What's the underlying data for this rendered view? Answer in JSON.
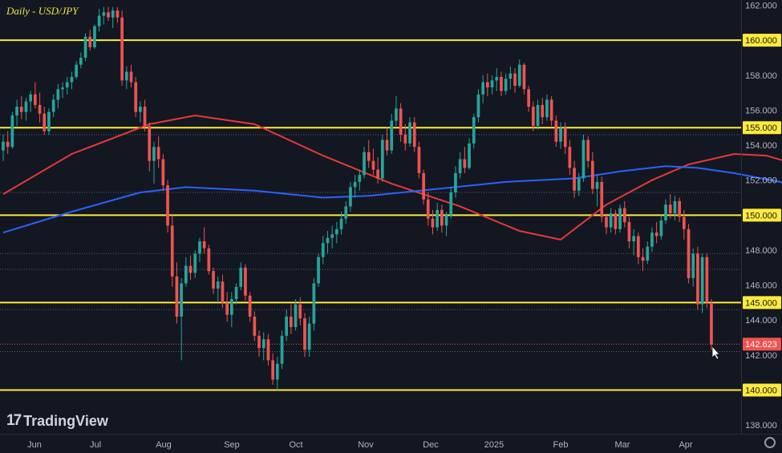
{
  "header": {
    "title": "Daily - USD/JPY"
  },
  "branding": {
    "logo_mark": "17",
    "logo_text": "TradingView"
  },
  "colors": {
    "background": "#131722",
    "up": "#26a69a",
    "down": "#ef5350",
    "level": "#ffeb3b",
    "ma_fast": "#e53935",
    "ma_slow": "#2962ff"
  },
  "chart_data": {
    "type": "candlestick",
    "symbol": "USD/JPY",
    "interval": "Daily",
    "ylim": [
      137.5,
      162.3
    ],
    "yticks": [
      138,
      140,
      142,
      144,
      146,
      148,
      150,
      152,
      154,
      156,
      158,
      160,
      162
    ],
    "ytick_labels": [
      "138.000",
      "140.000",
      "142.000",
      "144.000",
      "146.000",
      "148.000",
      "150.000",
      "152.000",
      "154.000",
      "156.000",
      "158.000",
      "160.000",
      "162.000"
    ],
    "x_labels": [
      "Jun",
      "Jul",
      "Aug",
      "Sep",
      "Oct",
      "Nov",
      "Dec",
      "2025",
      "Feb",
      "Mar",
      "Apr"
    ],
    "levels": [
      {
        "value": 160,
        "label": "160.000"
      },
      {
        "value": 155,
        "label": "155.000"
      },
      {
        "value": 150,
        "label": "150.000"
      },
      {
        "value": 145,
        "label": "145.000"
      },
      {
        "value": 140,
        "label": "140.000"
      }
    ],
    "dotted_levels": [
      154.6,
      151.3,
      147.8,
      146.9,
      144.6,
      142.2
    ],
    "last_price": {
      "value": 142.623,
      "label": "142.623"
    },
    "moving_averages": [
      {
        "points": [
          [
            0,
            151.2
          ],
          [
            15,
            153.5
          ],
          [
            32,
            155.2
          ],
          [
            42,
            155.7
          ],
          [
            55,
            155.2
          ],
          [
            70,
            153.4
          ],
          [
            85,
            151.8
          ],
          [
            100,
            150.5
          ],
          [
            113,
            149.1
          ],
          [
            122,
            148.6
          ],
          [
            132,
            150.6
          ],
          [
            142,
            152.0
          ],
          [
            150,
            152.9
          ],
          [
            160,
            153.5
          ],
          [
            167,
            153.4
          ],
          [
            175,
            152.8
          ],
          [
            182,
            152.2
          ]
        ]
      },
      {
        "points": [
          [
            0,
            149.0
          ],
          [
            15,
            150.2
          ],
          [
            30,
            151.3
          ],
          [
            40,
            151.6
          ],
          [
            55,
            151.4
          ],
          [
            70,
            151.0
          ],
          [
            80,
            151.1
          ],
          [
            95,
            151.5
          ],
          [
            110,
            151.9
          ],
          [
            125,
            152.1
          ],
          [
            135,
            152.5
          ],
          [
            145,
            152.8
          ],
          [
            152,
            152.7
          ],
          [
            160,
            152.4
          ],
          [
            170,
            151.9
          ],
          [
            182,
            151.0
          ]
        ]
      }
    ],
    "candles": [
      [
        153.7,
        154.6,
        153.1,
        154.2
      ],
      [
        154.2,
        154.8,
        153.5,
        153.9
      ],
      [
        153.9,
        155.9,
        153.8,
        155.7
      ],
      [
        155.7,
        156.6,
        155.1,
        156.2
      ],
      [
        156.2,
        156.8,
        155.5,
        155.9
      ],
      [
        155.9,
        156.7,
        155.4,
        156.5
      ],
      [
        156.5,
        157.1,
        155.9,
        156.9
      ],
      [
        156.9,
        157.6,
        156.1,
        156.3
      ],
      [
        156.3,
        157.0,
        155.3,
        155.8
      ],
      [
        155.8,
        156.2,
        154.6,
        154.8
      ],
      [
        154.8,
        156.1,
        154.6,
        155.9
      ],
      [
        155.9,
        156.9,
        155.6,
        156.6
      ],
      [
        156.6,
        157.5,
        156.1,
        157.2
      ],
      [
        157.2,
        157.6,
        156.7,
        157.3
      ],
      [
        157.3,
        157.9,
        156.9,
        157.6
      ],
      [
        157.6,
        158.2,
        157.2,
        157.9
      ],
      [
        157.9,
        158.8,
        157.8,
        158.6
      ],
      [
        158.6,
        159.3,
        158.4,
        159.0
      ],
      [
        159.0,
        160.4,
        158.8,
        160.2
      ],
      [
        160.2,
        160.6,
        159.4,
        159.6
      ],
      [
        159.6,
        160.9,
        159.5,
        160.8
      ],
      [
        160.8,
        161.8,
        160.5,
        161.4
      ],
      [
        161.4,
        161.9,
        160.9,
        161.6
      ],
      [
        161.6,
        161.9,
        161.1,
        161.3
      ],
      [
        161.3,
        161.9,
        160.7,
        161.7
      ],
      [
        161.7,
        161.9,
        161.0,
        161.3
      ],
      [
        161.3,
        161.7,
        157.4,
        157.7
      ],
      [
        157.7,
        158.5,
        157.2,
        158.2
      ],
      [
        158.2,
        158.6,
        157.3,
        157.6
      ],
      [
        157.6,
        157.9,
        155.6,
        155.9
      ],
      [
        155.9,
        156.5,
        155.3,
        156.2
      ],
      [
        156.2,
        156.6,
        154.8,
        155.1
      ],
      [
        155.1,
        155.3,
        152.5,
        153.1
      ],
      [
        153.1,
        154.2,
        151.8,
        153.9
      ],
      [
        153.9,
        154.5,
        152.7,
        153.2
      ],
      [
        153.2,
        153.5,
        151.4,
        151.7
      ],
      [
        151.7,
        152.0,
        149.0,
        149.4
      ],
      [
        149.4,
        150.0,
        145.9,
        146.5
      ],
      [
        146.5,
        147.3,
        143.8,
        144.2
      ],
      [
        144.2,
        146.4,
        141.7,
        146.1
      ],
      [
        146.1,
        147.6,
        145.9,
        147.1
      ],
      [
        147.1,
        147.7,
        146.3,
        146.7
      ],
      [
        146.7,
        148.0,
        146.4,
        147.8
      ],
      [
        147.8,
        148.7,
        147.3,
        148.5
      ],
      [
        148.5,
        149.3,
        147.8,
        148.1
      ],
      [
        148.1,
        148.3,
        146.6,
        146.8
      ],
      [
        146.8,
        147.0,
        145.5,
        145.8
      ],
      [
        145.8,
        146.5,
        145.0,
        146.2
      ],
      [
        146.2,
        146.6,
        144.7,
        145.0
      ],
      [
        145.0,
        145.6,
        143.9,
        144.3
      ],
      [
        144.3,
        145.6,
        143.6,
        145.2
      ],
      [
        145.2,
        146.1,
        144.9,
        145.9
      ],
      [
        145.9,
        147.3,
        145.7,
        147.0
      ],
      [
        147.0,
        147.2,
        145.1,
        145.4
      ],
      [
        145.4,
        145.6,
        143.9,
        144.2
      ],
      [
        144.2,
        144.5,
        142.8,
        143.1
      ],
      [
        143.1,
        143.4,
        141.9,
        142.4
      ],
      [
        142.4,
        143.3,
        141.7,
        142.9
      ],
      [
        142.9,
        143.2,
        141.4,
        141.7
      ],
      [
        141.7,
        142.1,
        140.3,
        140.6
      ],
      [
        140.6,
        141.9,
        140.0,
        141.5
      ],
      [
        141.5,
        143.4,
        141.2,
        143.1
      ],
      [
        143.1,
        144.6,
        142.8,
        144.2
      ],
      [
        144.2,
        144.9,
        143.2,
        143.6
      ],
      [
        143.6,
        145.2,
        143.4,
        144.9
      ],
      [
        144.9,
        145.3,
        143.7,
        144.1
      ],
      [
        144.1,
        144.4,
        141.9,
        142.3
      ],
      [
        142.3,
        144.2,
        141.9,
        143.8
      ],
      [
        143.8,
        146.4,
        143.4,
        146.1
      ],
      [
        146.1,
        147.8,
        145.9,
        147.6
      ],
      [
        147.6,
        148.8,
        147.2,
        148.4
      ],
      [
        148.4,
        149.1,
        147.8,
        148.7
      ],
      [
        148.7,
        149.4,
        148.1,
        148.9
      ],
      [
        148.9,
        149.6,
        148.4,
        149.2
      ],
      [
        149.2,
        150.2,
        148.9,
        149.8
      ],
      [
        149.8,
        150.8,
        149.5,
        150.5
      ],
      [
        150.5,
        151.9,
        150.2,
        151.6
      ],
      [
        151.6,
        152.3,
        151.0,
        151.9
      ],
      [
        151.9,
        152.6,
        151.4,
        152.3
      ],
      [
        152.3,
        153.9,
        152.1,
        153.6
      ],
      [
        153.6,
        154.3,
        152.7,
        153.1
      ],
      [
        153.1,
        153.8,
        152.3,
        152.6
      ],
      [
        152.6,
        153.3,
        151.8,
        152.1
      ],
      [
        152.1,
        154.6,
        151.9,
        154.3
      ],
      [
        154.3,
        155.0,
        153.4,
        153.7
      ],
      [
        153.7,
        155.8,
        153.5,
        155.4
      ],
      [
        155.4,
        156.8,
        155.1,
        156.1
      ],
      [
        156.1,
        156.4,
        154.2,
        154.6
      ],
      [
        154.6,
        155.2,
        153.7,
        154.1
      ],
      [
        154.1,
        155.6,
        153.9,
        155.3
      ],
      [
        155.3,
        155.6,
        153.6,
        153.9
      ],
      [
        153.9,
        154.2,
        152.1,
        152.4
      ],
      [
        152.4,
        152.6,
        150.6,
        150.9
      ],
      [
        150.9,
        151.3,
        149.4,
        149.8
      ],
      [
        149.8,
        150.3,
        148.9,
        149.3
      ],
      [
        149.3,
        150.7,
        149.1,
        150.3
      ],
      [
        150.3,
        150.6,
        149.0,
        149.4
      ],
      [
        149.4,
        150.2,
        148.8,
        150.0
      ],
      [
        150.0,
        151.6,
        149.8,
        151.3
      ],
      [
        151.3,
        152.8,
        151.0,
        152.4
      ],
      [
        152.4,
        153.6,
        152.1,
        153.2
      ],
      [
        153.2,
        153.9,
        152.4,
        152.7
      ],
      [
        152.7,
        154.4,
        152.6,
        154.1
      ],
      [
        154.1,
        155.8,
        153.8,
        155.6
      ],
      [
        155.6,
        157.2,
        155.3,
        156.9
      ],
      [
        156.9,
        158.0,
        156.4,
        157.6
      ],
      [
        157.6,
        158.1,
        156.8,
        157.3
      ],
      [
        157.3,
        158.0,
        156.9,
        157.7
      ],
      [
        157.7,
        158.4,
        157.1,
        157.9
      ],
      [
        157.9,
        158.2,
        156.8,
        157.1
      ],
      [
        157.1,
        158.1,
        156.9,
        157.8
      ],
      [
        157.8,
        158.5,
        157.2,
        158.1
      ],
      [
        158.1,
        158.4,
        157.0,
        157.4
      ],
      [
        157.4,
        158.9,
        157.3,
        158.6
      ],
      [
        158.6,
        158.7,
        156.9,
        157.2
      ],
      [
        157.2,
        157.4,
        155.9,
        156.2
      ],
      [
        156.2,
        156.5,
        154.8,
        155.1
      ],
      [
        155.1,
        156.6,
        154.9,
        156.3
      ],
      [
        156.3,
        156.7,
        155.2,
        155.6
      ],
      [
        155.6,
        156.9,
        155.4,
        156.6
      ],
      [
        156.6,
        156.8,
        155.1,
        155.4
      ],
      [
        155.4,
        155.7,
        153.9,
        154.2
      ],
      [
        154.2,
        155.3,
        153.8,
        155.0
      ],
      [
        155.0,
        155.3,
        153.5,
        153.9
      ],
      [
        153.9,
        154.3,
        152.3,
        152.7
      ],
      [
        152.7,
        153.1,
        151.0,
        151.4
      ],
      [
        151.4,
        152.4,
        151.1,
        152.1
      ],
      [
        152.1,
        154.6,
        151.9,
        154.3
      ],
      [
        154.3,
        154.5,
        152.7,
        153.1
      ],
      [
        153.1,
        153.6,
        151.2,
        151.5
      ],
      [
        151.5,
        152.3,
        150.5,
        151.9
      ],
      [
        151.9,
        152.2,
        149.6,
        149.9
      ],
      [
        149.9,
        150.1,
        148.9,
        149.3
      ],
      [
        149.3,
        150.4,
        149.0,
        150.1
      ],
      [
        150.1,
        150.3,
        148.9,
        149.2
      ],
      [
        149.2,
        150.6,
        149.0,
        150.4
      ],
      [
        150.4,
        150.8,
        149.3,
        149.6
      ],
      [
        149.6,
        149.9,
        148.1,
        148.5
      ],
      [
        148.5,
        149.2,
        147.7,
        148.8
      ],
      [
        148.8,
        149.0,
        147.2,
        147.6
      ],
      [
        147.6,
        148.1,
        146.8,
        147.4
      ],
      [
        147.4,
        148.5,
        147.2,
        148.2
      ],
      [
        148.2,
        149.3,
        147.9,
        149.0
      ],
      [
        149.0,
        149.6,
        148.4,
        148.8
      ],
      [
        148.8,
        150.0,
        148.6,
        149.7
      ],
      [
        149.7,
        150.9,
        149.5,
        150.6
      ],
      [
        150.6,
        151.2,
        149.8,
        150.1
      ],
      [
        150.1,
        151.1,
        149.7,
        150.8
      ],
      [
        150.8,
        151.0,
        149.6,
        149.9
      ],
      [
        149.9,
        150.3,
        148.6,
        149.2
      ],
      [
        149.2,
        149.5,
        146.1,
        146.4
      ],
      [
        146.4,
        148.1,
        145.9,
        147.8
      ],
      [
        147.8,
        148.2,
        144.6,
        144.9
      ],
      [
        144.9,
        147.8,
        144.4,
        147.6
      ],
      [
        147.6,
        147.8,
        144.7,
        145.0
      ],
      [
        145.0,
        145.2,
        142.3,
        142.6
      ]
    ]
  }
}
